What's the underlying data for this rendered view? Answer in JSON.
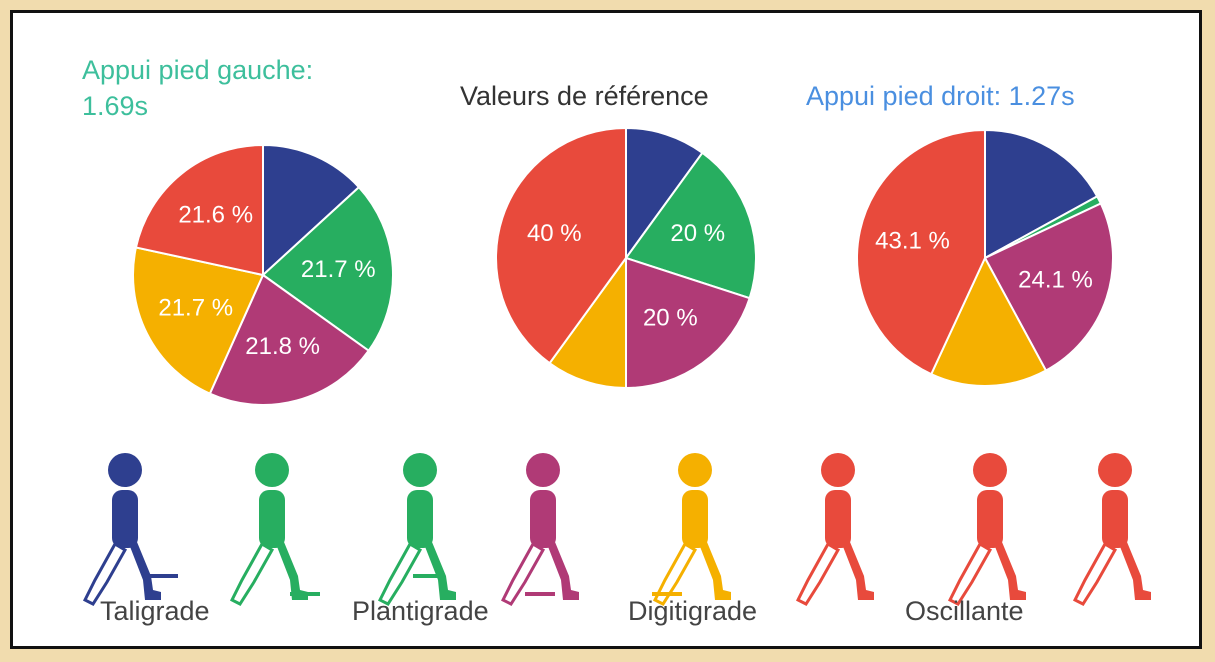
{
  "chart_data": [
    {
      "type": "pie",
      "title": "Appui pied gauche: 1.69s",
      "title_color": "#3dbf9c",
      "values": [
        13.2,
        21.7,
        21.8,
        21.7,
        21.6
      ],
      "value_labels": [
        null,
        "21.7 %",
        "21.8 %",
        "21.7 %",
        "21.6 %"
      ],
      "colors": [
        "#2e3f8f",
        "#27ae60",
        "#b03a76",
        "#f5b000",
        "#e84a3c"
      ]
    },
    {
      "type": "pie",
      "title": "Valeurs de référence",
      "title_color": "#333333",
      "values": [
        10,
        20,
        20,
        10,
        40
      ],
      "value_labels": [
        null,
        "20 %",
        "20 %",
        null,
        "40 %"
      ],
      "colors": [
        "#2e3f8f",
        "#27ae60",
        "#b03a76",
        "#f5b000",
        "#e84a3c"
      ]
    },
    {
      "type": "pie",
      "title": "Appui pied droit: 1.27s",
      "title_color": "#4a8fe0",
      "values": [
        17,
        1,
        24.1,
        14.8,
        43.1
      ],
      "value_labels": [
        null,
        null,
        "24.1 %",
        null,
        "43.1 %"
      ],
      "colors": [
        "#2e3f8f",
        "#27ae60",
        "#b03a76",
        "#f5b000",
        "#e84a3c"
      ]
    }
  ],
  "phases": [
    "Taligrade",
    "Plantigrade",
    "Digitigrade",
    "Oscillante"
  ]
}
